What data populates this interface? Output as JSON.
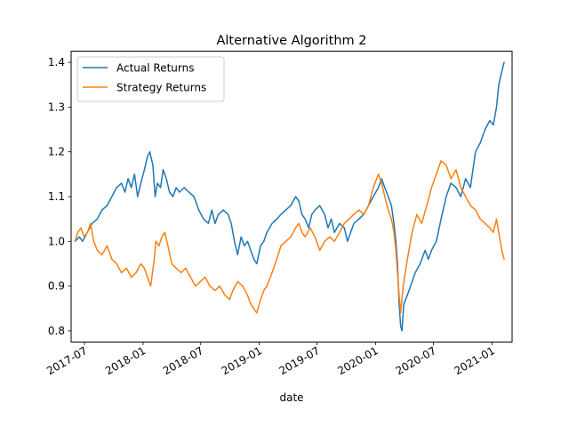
{
  "chart_data": {
    "type": "line",
    "title": "Alternative Algorithm 2",
    "xlabel": "date",
    "ylabel": "",
    "xlim": [
      "2017-05-20",
      "2021-03-05"
    ],
    "ylim": [
      0.775,
      1.425
    ],
    "x_ticks": [
      {
        "date": "2017-07-01",
        "label": "2017-07"
      },
      {
        "date": "2018-01-01",
        "label": "2018-01"
      },
      {
        "date": "2018-07-01",
        "label": "2018-07"
      },
      {
        "date": "2019-01-01",
        "label": "2019-01"
      },
      {
        "date": "2019-07-01",
        "label": "2019-07"
      },
      {
        "date": "2020-01-01",
        "label": "2020-01"
      },
      {
        "date": "2020-07-01",
        "label": "2020-07"
      },
      {
        "date": "2021-01-01",
        "label": "2021-01"
      }
    ],
    "y_ticks": [
      {
        "value": 0.8,
        "label": "0.8"
      },
      {
        "value": 0.9,
        "label": "0.9"
      },
      {
        "value": 1.0,
        "label": "1.0"
      },
      {
        "value": 1.1,
        "label": "1.1"
      },
      {
        "value": 1.2,
        "label": "1.2"
      },
      {
        "value": 1.3,
        "label": "1.3"
      },
      {
        "value": 1.4,
        "label": "1.4"
      }
    ],
    "grid": false,
    "legend": "top-left",
    "series": [
      {
        "name": "Actual Returns",
        "color": "#1f77b4",
        "points": [
          [
            "2017-06-01",
            1.0
          ],
          [
            "2017-06-15",
            1.01
          ],
          [
            "2017-06-25",
            1.0
          ],
          [
            "2017-07-10",
            1.02
          ],
          [
            "2017-07-25",
            1.04
          ],
          [
            "2017-08-10",
            1.05
          ],
          [
            "2017-08-25",
            1.07
          ],
          [
            "2017-09-10",
            1.08
          ],
          [
            "2017-09-25",
            1.1
          ],
          [
            "2017-10-10",
            1.12
          ],
          [
            "2017-10-25",
            1.13
          ],
          [
            "2017-11-05",
            1.11
          ],
          [
            "2017-11-15",
            1.14
          ],
          [
            "2017-11-25",
            1.12
          ],
          [
            "2017-12-05",
            1.15
          ],
          [
            "2017-12-15",
            1.1
          ],
          [
            "2017-12-25",
            1.13
          ],
          [
            "2018-01-05",
            1.16
          ],
          [
            "2018-01-15",
            1.19
          ],
          [
            "2018-01-22",
            1.2
          ],
          [
            "2018-02-01",
            1.17
          ],
          [
            "2018-02-08",
            1.1
          ],
          [
            "2018-02-15",
            1.13
          ],
          [
            "2018-02-25",
            1.12
          ],
          [
            "2018-03-05",
            1.16
          ],
          [
            "2018-03-15",
            1.14
          ],
          [
            "2018-03-25",
            1.11
          ],
          [
            "2018-04-05",
            1.1
          ],
          [
            "2018-04-15",
            1.12
          ],
          [
            "2018-04-25",
            1.11
          ],
          [
            "2018-05-10",
            1.12
          ],
          [
            "2018-05-25",
            1.11
          ],
          [
            "2018-06-10",
            1.1
          ],
          [
            "2018-06-25",
            1.07
          ],
          [
            "2018-07-10",
            1.05
          ],
          [
            "2018-07-25",
            1.04
          ],
          [
            "2018-08-05",
            1.07
          ],
          [
            "2018-08-15",
            1.04
          ],
          [
            "2018-08-25",
            1.06
          ],
          [
            "2018-09-10",
            1.07
          ],
          [
            "2018-09-25",
            1.06
          ],
          [
            "2018-10-05",
            1.04
          ],
          [
            "2018-10-15",
            1.0
          ],
          [
            "2018-10-25",
            0.97
          ],
          [
            "2018-11-05",
            1.01
          ],
          [
            "2018-11-15",
            0.99
          ],
          [
            "2018-11-25",
            1.0
          ],
          [
            "2018-12-05",
            0.98
          ],
          [
            "2018-12-15",
            0.96
          ],
          [
            "2018-12-24",
            0.95
          ],
          [
            "2019-01-05",
            0.99
          ],
          [
            "2019-01-15",
            1.0
          ],
          [
            "2019-01-25",
            1.02
          ],
          [
            "2019-02-10",
            1.04
          ],
          [
            "2019-02-25",
            1.05
          ],
          [
            "2019-03-10",
            1.06
          ],
          [
            "2019-03-25",
            1.07
          ],
          [
            "2019-04-10",
            1.08
          ],
          [
            "2019-04-25",
            1.1
          ],
          [
            "2019-05-05",
            1.09
          ],
          [
            "2019-05-15",
            1.06
          ],
          [
            "2019-05-25",
            1.05
          ],
          [
            "2019-06-05",
            1.03
          ],
          [
            "2019-06-15",
            1.06
          ],
          [
            "2019-06-25",
            1.07
          ],
          [
            "2019-07-10",
            1.08
          ],
          [
            "2019-07-25",
            1.06
          ],
          [
            "2019-08-05",
            1.03
          ],
          [
            "2019-08-15",
            1.05
          ],
          [
            "2019-08-25",
            1.02
          ],
          [
            "2019-09-10",
            1.04
          ],
          [
            "2019-09-25",
            1.03
          ],
          [
            "2019-10-05",
            1.0
          ],
          [
            "2019-10-15",
            1.02
          ],
          [
            "2019-10-25",
            1.04
          ],
          [
            "2019-11-10",
            1.05
          ],
          [
            "2019-11-25",
            1.06
          ],
          [
            "2019-12-10",
            1.08
          ],
          [
            "2019-12-25",
            1.1
          ],
          [
            "2020-01-10",
            1.12
          ],
          [
            "2020-01-20",
            1.14
          ],
          [
            "2020-01-30",
            1.12
          ],
          [
            "2020-02-10",
            1.1
          ],
          [
            "2020-02-20",
            1.08
          ],
          [
            "2020-02-28",
            1.04
          ],
          [
            "2020-03-05",
            1.0
          ],
          [
            "2020-03-10",
            0.95
          ],
          [
            "2020-03-15",
            0.86
          ],
          [
            "2020-03-20",
            0.81
          ],
          [
            "2020-03-24",
            0.8
          ],
          [
            "2020-03-30",
            0.86
          ],
          [
            "2020-04-10",
            0.88
          ],
          [
            "2020-04-20",
            0.9
          ],
          [
            "2020-05-05",
            0.93
          ],
          [
            "2020-05-20",
            0.95
          ],
          [
            "2020-06-05",
            0.98
          ],
          [
            "2020-06-15",
            0.96
          ],
          [
            "2020-06-25",
            0.98
          ],
          [
            "2020-07-10",
            1.0
          ],
          [
            "2020-07-25",
            1.05
          ],
          [
            "2020-08-10",
            1.1
          ],
          [
            "2020-08-25",
            1.13
          ],
          [
            "2020-09-10",
            1.12
          ],
          [
            "2020-09-25",
            1.1
          ],
          [
            "2020-10-10",
            1.14
          ],
          [
            "2020-10-25",
            1.12
          ],
          [
            "2020-11-10",
            1.2
          ],
          [
            "2020-11-25",
            1.22
          ],
          [
            "2020-12-10",
            1.25
          ],
          [
            "2020-12-25",
            1.27
          ],
          [
            "2021-01-05",
            1.26
          ],
          [
            "2021-01-15",
            1.3
          ],
          [
            "2021-01-22",
            1.35
          ],
          [
            "2021-02-01",
            1.38
          ],
          [
            "2021-02-08",
            1.4
          ]
        ]
      },
      {
        "name": "Strategy Returns",
        "color": "#ff7f0e",
        "points": [
          [
            "2017-06-01",
            1.0
          ],
          [
            "2017-06-10",
            1.02
          ],
          [
            "2017-06-20",
            1.03
          ],
          [
            "2017-06-30",
            1.01
          ],
          [
            "2017-07-10",
            1.02
          ],
          [
            "2017-07-20",
            1.04
          ],
          [
            "2017-07-30",
            1.0
          ],
          [
            "2017-08-10",
            0.98
          ],
          [
            "2017-08-25",
            0.97
          ],
          [
            "2017-09-10",
            0.99
          ],
          [
            "2017-09-25",
            0.96
          ],
          [
            "2017-10-10",
            0.95
          ],
          [
            "2017-10-25",
            0.93
          ],
          [
            "2017-11-10",
            0.94
          ],
          [
            "2017-11-25",
            0.92
          ],
          [
            "2017-12-10",
            0.93
          ],
          [
            "2017-12-25",
            0.95
          ],
          [
            "2018-01-05",
            0.94
          ],
          [
            "2018-01-15",
            0.92
          ],
          [
            "2018-01-25",
            0.9
          ],
          [
            "2018-02-05",
            0.96
          ],
          [
            "2018-02-10",
            1.0
          ],
          [
            "2018-02-20",
            0.99
          ],
          [
            "2018-03-01",
            1.01
          ],
          [
            "2018-03-10",
            1.02
          ],
          [
            "2018-03-20",
            0.99
          ],
          [
            "2018-04-01",
            0.95
          ],
          [
            "2018-04-15",
            0.94
          ],
          [
            "2018-04-30",
            0.93
          ],
          [
            "2018-05-15",
            0.94
          ],
          [
            "2018-05-30",
            0.92
          ],
          [
            "2018-06-15",
            0.9
          ],
          [
            "2018-06-30",
            0.91
          ],
          [
            "2018-07-15",
            0.92
          ],
          [
            "2018-07-30",
            0.9
          ],
          [
            "2018-08-15",
            0.89
          ],
          [
            "2018-08-30",
            0.9
          ],
          [
            "2018-09-15",
            0.88
          ],
          [
            "2018-09-30",
            0.87
          ],
          [
            "2018-10-10",
            0.89
          ],
          [
            "2018-10-25",
            0.91
          ],
          [
            "2018-11-10",
            0.9
          ],
          [
            "2018-11-25",
            0.88
          ],
          [
            "2018-12-05",
            0.86
          ],
          [
            "2018-12-24",
            0.84
          ],
          [
            "2019-01-05",
            0.87
          ],
          [
            "2019-01-15",
            0.89
          ],
          [
            "2019-01-25",
            0.9
          ],
          [
            "2019-02-10",
            0.93
          ],
          [
            "2019-02-25",
            0.96
          ],
          [
            "2019-03-10",
            0.99
          ],
          [
            "2019-03-25",
            1.0
          ],
          [
            "2019-04-10",
            1.01
          ],
          [
            "2019-04-25",
            1.03
          ],
          [
            "2019-05-05",
            1.04
          ],
          [
            "2019-05-15",
            1.02
          ],
          [
            "2019-05-25",
            1.01
          ],
          [
            "2019-06-10",
            1.03
          ],
          [
            "2019-06-25",
            1.01
          ],
          [
            "2019-07-10",
            0.98
          ],
          [
            "2019-07-25",
            1.0
          ],
          [
            "2019-08-10",
            1.01
          ],
          [
            "2019-08-25",
            1.0
          ],
          [
            "2019-09-10",
            1.02
          ],
          [
            "2019-09-25",
            1.04
          ],
          [
            "2019-10-10",
            1.05
          ],
          [
            "2019-10-25",
            1.06
          ],
          [
            "2019-11-10",
            1.07
          ],
          [
            "2019-11-25",
            1.06
          ],
          [
            "2019-12-10",
            1.08
          ],
          [
            "2019-12-25",
            1.12
          ],
          [
            "2020-01-10",
            1.15
          ],
          [
            "2020-01-20",
            1.13
          ],
          [
            "2020-01-30",
            1.1
          ],
          [
            "2020-02-10",
            1.07
          ],
          [
            "2020-02-20",
            1.05
          ],
          [
            "2020-02-28",
            1.02
          ],
          [
            "2020-03-05",
            0.98
          ],
          [
            "2020-03-10",
            0.93
          ],
          [
            "2020-03-15",
            0.88
          ],
          [
            "2020-03-20",
            0.84
          ],
          [
            "2020-03-28",
            0.9
          ],
          [
            "2020-04-10",
            0.96
          ],
          [
            "2020-04-25",
            1.02
          ],
          [
            "2020-05-10",
            1.06
          ],
          [
            "2020-05-25",
            1.04
          ],
          [
            "2020-06-10",
            1.08
          ],
          [
            "2020-06-25",
            1.12
          ],
          [
            "2020-07-10",
            1.15
          ],
          [
            "2020-07-25",
            1.18
          ],
          [
            "2020-08-10",
            1.17
          ],
          [
            "2020-08-25",
            1.14
          ],
          [
            "2020-09-10",
            1.16
          ],
          [
            "2020-09-25",
            1.12
          ],
          [
            "2020-10-10",
            1.1
          ],
          [
            "2020-10-25",
            1.08
          ],
          [
            "2020-11-10",
            1.07
          ],
          [
            "2020-11-25",
            1.05
          ],
          [
            "2020-12-10",
            1.04
          ],
          [
            "2020-12-25",
            1.03
          ],
          [
            "2021-01-05",
            1.02
          ],
          [
            "2021-01-15",
            1.05
          ],
          [
            "2021-01-22",
            1.02
          ],
          [
            "2021-02-01",
            0.98
          ],
          [
            "2021-02-08",
            0.96
          ]
        ]
      }
    ]
  }
}
